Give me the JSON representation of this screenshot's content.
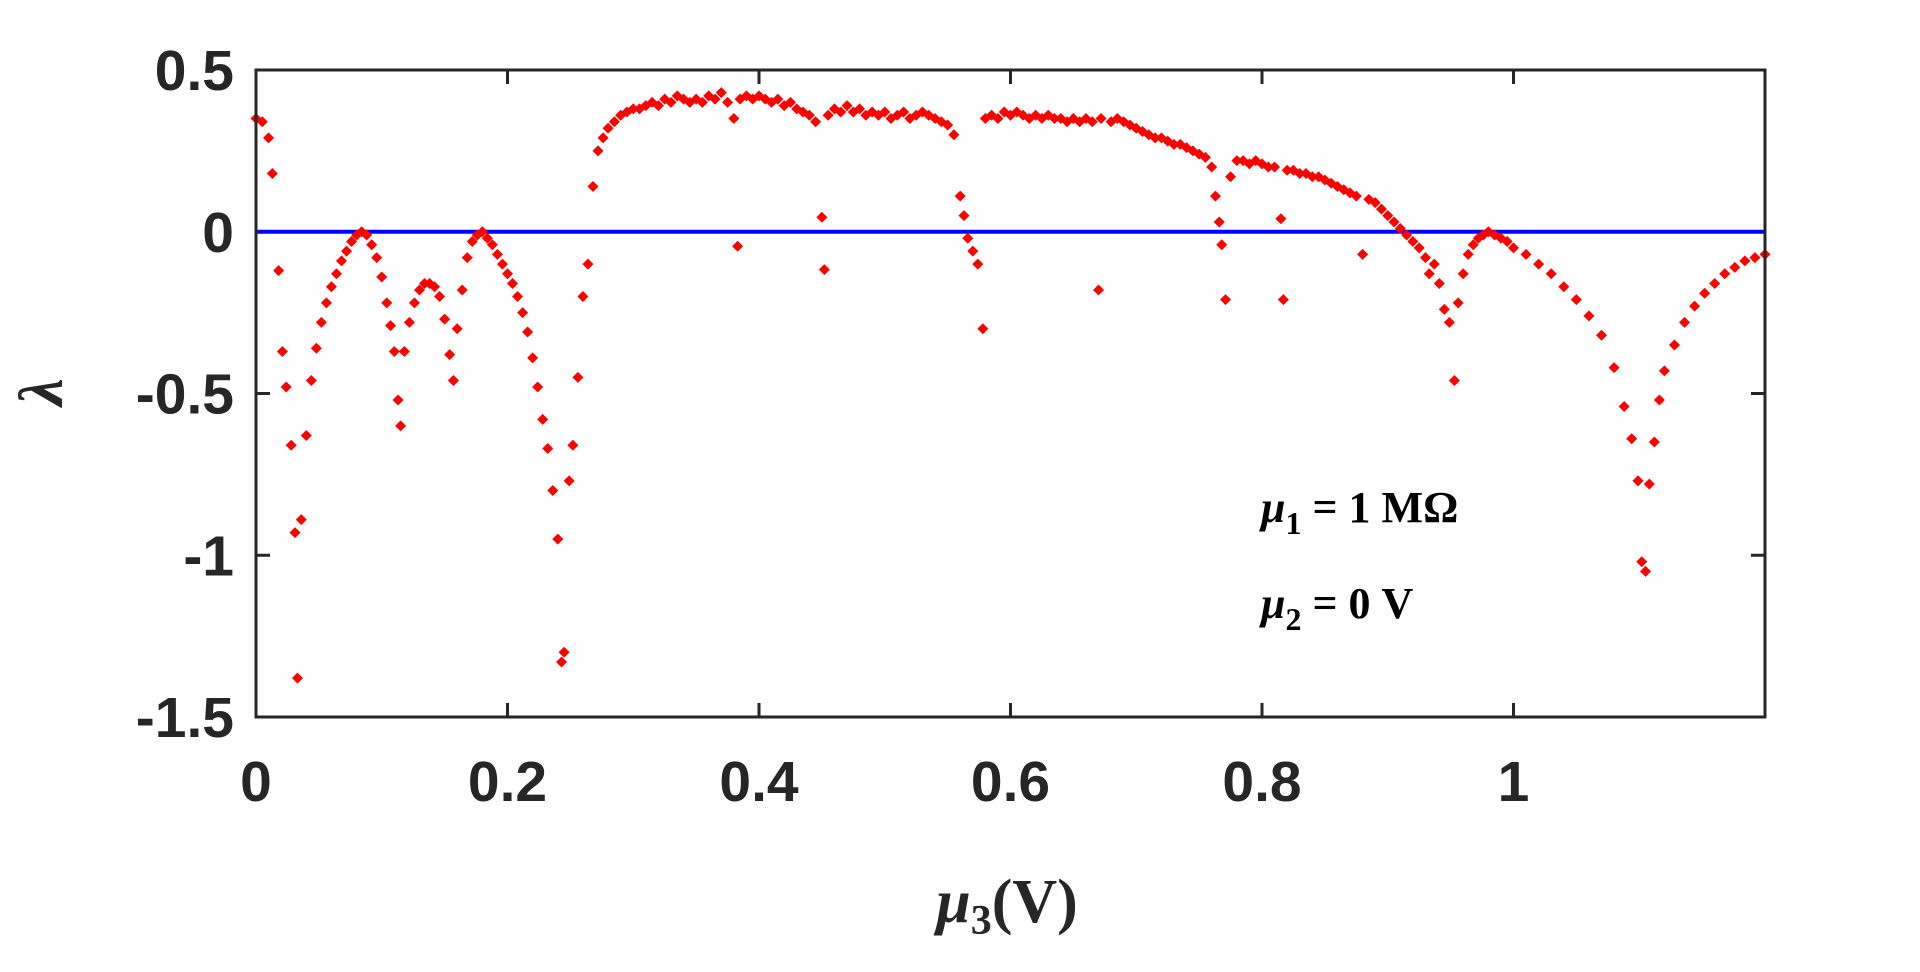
{
  "chart_data": {
    "type": "scatter",
    "xlabel": {
      "symbol": "μ",
      "sub": "3",
      "text": "(V)"
    },
    "ylabel": "λ",
    "annotations": [
      {
        "symbol": "μ",
        "sub": "1",
        "text": " = 1 MΩ"
      },
      {
        "symbol": "μ",
        "sub": "2",
        "text": " = 0 V"
      }
    ],
    "color": "#ff0000",
    "reference_line": {
      "value": 0,
      "color": "#0000ff"
    },
    "xlim": [
      0,
      1.2
    ],
    "ylim": [
      -1.5,
      0.5
    ],
    "xticks": [
      0,
      0.2,
      0.4,
      0.6,
      0.8,
      1
    ],
    "yticks": [
      0.5,
      0,
      -0.5,
      -1,
      -1.5
    ],
    "x": [
      0,
      0.005,
      0.01,
      0.013,
      0.018,
      0.021,
      0.024,
      0.028,
      0.031,
      0.033,
      0.036,
      0.04,
      0.044,
      0.048,
      0.052,
      0.056,
      0.06,
      0.064,
      0.068,
      0.072,
      0.076,
      0.08,
      0.084,
      0.088,
      0.092,
      0.096,
      0.1,
      0.104,
      0.107,
      0.11,
      0.113,
      0.115,
      0.118,
      0.122,
      0.126,
      0.13,
      0.134,
      0.138,
      0.142,
      0.146,
      0.15,
      0.154,
      0.157,
      0.16,
      0.164,
      0.168,
      0.172,
      0.176,
      0.18,
      0.184,
      0.188,
      0.192,
      0.196,
      0.2,
      0.204,
      0.208,
      0.212,
      0.216,
      0.22,
      0.224,
      0.228,
      0.232,
      0.236,
      0.24,
      0.243,
      0.245,
      0.249,
      0.252,
      0.256,
      0.26,
      0.264,
      0.268,
      0.272,
      0.276,
      0.28,
      0.285,
      0.29,
      0.295,
      0.3,
      0.305,
      0.31,
      0.315,
      0.32,
      0.325,
      0.33,
      0.335,
      0.34,
      0.345,
      0.35,
      0.355,
      0.36,
      0.365,
      0.37,
      0.375,
      0.38,
      0.383,
      0.385,
      0.39,
      0.395,
      0.4,
      0.405,
      0.41,
      0.415,
      0.42,
      0.425,
      0.43,
      0.435,
      0.44,
      0.445,
      0.45,
      0.452,
      0.455,
      0.46,
      0.465,
      0.47,
      0.475,
      0.48,
      0.485,
      0.49,
      0.495,
      0.5,
      0.505,
      0.51,
      0.515,
      0.52,
      0.525,
      0.53,
      0.535,
      0.54,
      0.545,
      0.55,
      0.555,
      0.56,
      0.563,
      0.566,
      0.57,
      0.574,
      0.578,
      0.58,
      0.585,
      0.59,
      0.595,
      0.6,
      0.605,
      0.61,
      0.615,
      0.62,
      0.625,
      0.63,
      0.635,
      0.64,
      0.645,
      0.65,
      0.655,
      0.66,
      0.665,
      0.67,
      0.672,
      0.68,
      0.685,
      0.69,
      0.695,
      0.7,
      0.705,
      0.71,
      0.715,
      0.72,
      0.725,
      0.73,
      0.735,
      0.74,
      0.745,
      0.75,
      0.755,
      0.76,
      0.763,
      0.766,
      0.768,
      0.771,
      0.775,
      0.78,
      0.785,
      0.79,
      0.795,
      0.8,
      0.805,
      0.81,
      0.815,
      0.817,
      0.82,
      0.825,
      0.83,
      0.835,
      0.84,
      0.845,
      0.85,
      0.855,
      0.86,
      0.865,
      0.87,
      0.875,
      0.88,
      0.885,
      0.89,
      0.895,
      0.9,
      0.905,
      0.91,
      0.915,
      0.92,
      0.925,
      0.93,
      0.933,
      0.937,
      0.941,
      0.945,
      0.949,
      0.953,
      0.956,
      0.96,
      0.964,
      0.968,
      0.972,
      0.976,
      0.98,
      0.985,
      0.99,
      0.995,
      1,
      1.01,
      1.02,
      1.03,
      1.04,
      1.05,
      1.06,
      1.07,
      1.08,
      1.088,
      1.094,
      1.099,
      1.102,
      1.105,
      1.108,
      1.112,
      1.116,
      1.12,
      1.128,
      1.136,
      1.144,
      1.152,
      1.16,
      1.168,
      1.176,
      1.184,
      1.192,
      1.2
    ],
    "values": [
      0.35,
      0.34,
      0.29,
      0.18,
      -0.12,
      -0.37,
      -0.48,
      -0.66,
      -0.93,
      -1.38,
      -0.89,
      -0.63,
      -0.46,
      -0.36,
      -0.28,
      -0.22,
      -0.17,
      -0.13,
      -0.09,
      -0.06,
      -0.03,
      -0.01,
      0,
      -0.01,
      -0.04,
      -0.08,
      -0.14,
      -0.22,
      -0.29,
      -0.37,
      -0.52,
      -0.6,
      -0.37,
      -0.28,
      -0.22,
      -0.18,
      -0.16,
      -0.16,
      -0.17,
      -0.2,
      -0.27,
      -0.38,
      -0.46,
      -0.3,
      -0.18,
      -0.08,
      -0.03,
      -0.01,
      0,
      -0.02,
      -0.04,
      -0.07,
      -0.1,
      -0.13,
      -0.16,
      -0.2,
      -0.25,
      -0.31,
      -0.39,
      -0.48,
      -0.58,
      -0.67,
      -0.8,
      -0.95,
      -1.33,
      -1.3,
      -0.77,
      -0.66,
      -0.45,
      -0.2,
      -0.1,
      0.14,
      0.25,
      0.29,
      0.32,
      0.34,
      0.36,
      0.37,
      0.38,
      0.38,
      0.39,
      0.4,
      0.39,
      0.41,
      0.4,
      0.42,
      0.41,
      0.4,
      0.41,
      0.4,
      0.42,
      0.41,
      0.43,
      0.4,
      0.35,
      -0.045,
      0.41,
      0.42,
      0.41,
      0.42,
      0.41,
      0.4,
      0.41,
      0.39,
      0.4,
      0.38,
      0.37,
      0.36,
      0.34,
      0.045,
      -0.117,
      0.36,
      0.38,
      0.37,
      0.39,
      0.37,
      0.38,
      0.36,
      0.37,
      0.36,
      0.37,
      0.35,
      0.36,
      0.37,
      0.35,
      0.36,
      0.37,
      0.36,
      0.35,
      0.34,
      0.33,
      0.3,
      0.11,
      0.05,
      -0.02,
      -0.06,
      -0.1,
      -0.3,
      0.35,
      0.36,
      0.35,
      0.37,
      0.36,
      0.37,
      0.36,
      0.35,
      0.36,
      0.35,
      0.36,
      0.35,
      0.35,
      0.34,
      0.35,
      0.34,
      0.35,
      0.34,
      -0.18,
      0.35,
      0.34,
      0.35,
      0.34,
      0.33,
      0.32,
      0.31,
      0.3,
      0.29,
      0.29,
      0.28,
      0.27,
      0.27,
      0.26,
      0.25,
      0.24,
      0.23,
      0.2,
      0.11,
      0.03,
      -0.04,
      -0.21,
      0.17,
      0.22,
      0.22,
      0.21,
      0.22,
      0.21,
      0.2,
      0.2,
      0.04,
      -0.21,
      0.19,
      0.19,
      0.18,
      0.18,
      0.17,
      0.17,
      0.16,
      0.15,
      0.14,
      0.13,
      0.12,
      0.11,
      -0.07,
      0.1,
      0.09,
      0.07,
      0.05,
      0.03,
      0.01,
      -0.01,
      -0.03,
      -0.05,
      -0.08,
      -0.13,
      -0.1,
      -0.16,
      -0.24,
      -0.28,
      -0.46,
      -0.22,
      -0.13,
      -0.07,
      -0.04,
      -0.02,
      -0.01,
      0,
      -0.01,
      -0.02,
      -0.03,
      -0.05,
      -0.07,
      -0.1,
      -0.13,
      -0.17,
      -0.21,
      -0.26,
      -0.32,
      -0.42,
      -0.54,
      -0.64,
      -0.77,
      -1.02,
      -1.05,
      -0.78,
      -0.65,
      -0.52,
      -0.43,
      -0.35,
      -0.28,
      -0.23,
      -0.19,
      -0.16,
      -0.13,
      -0.11,
      -0.09,
      -0.08,
      -0.07
    ]
  }
}
